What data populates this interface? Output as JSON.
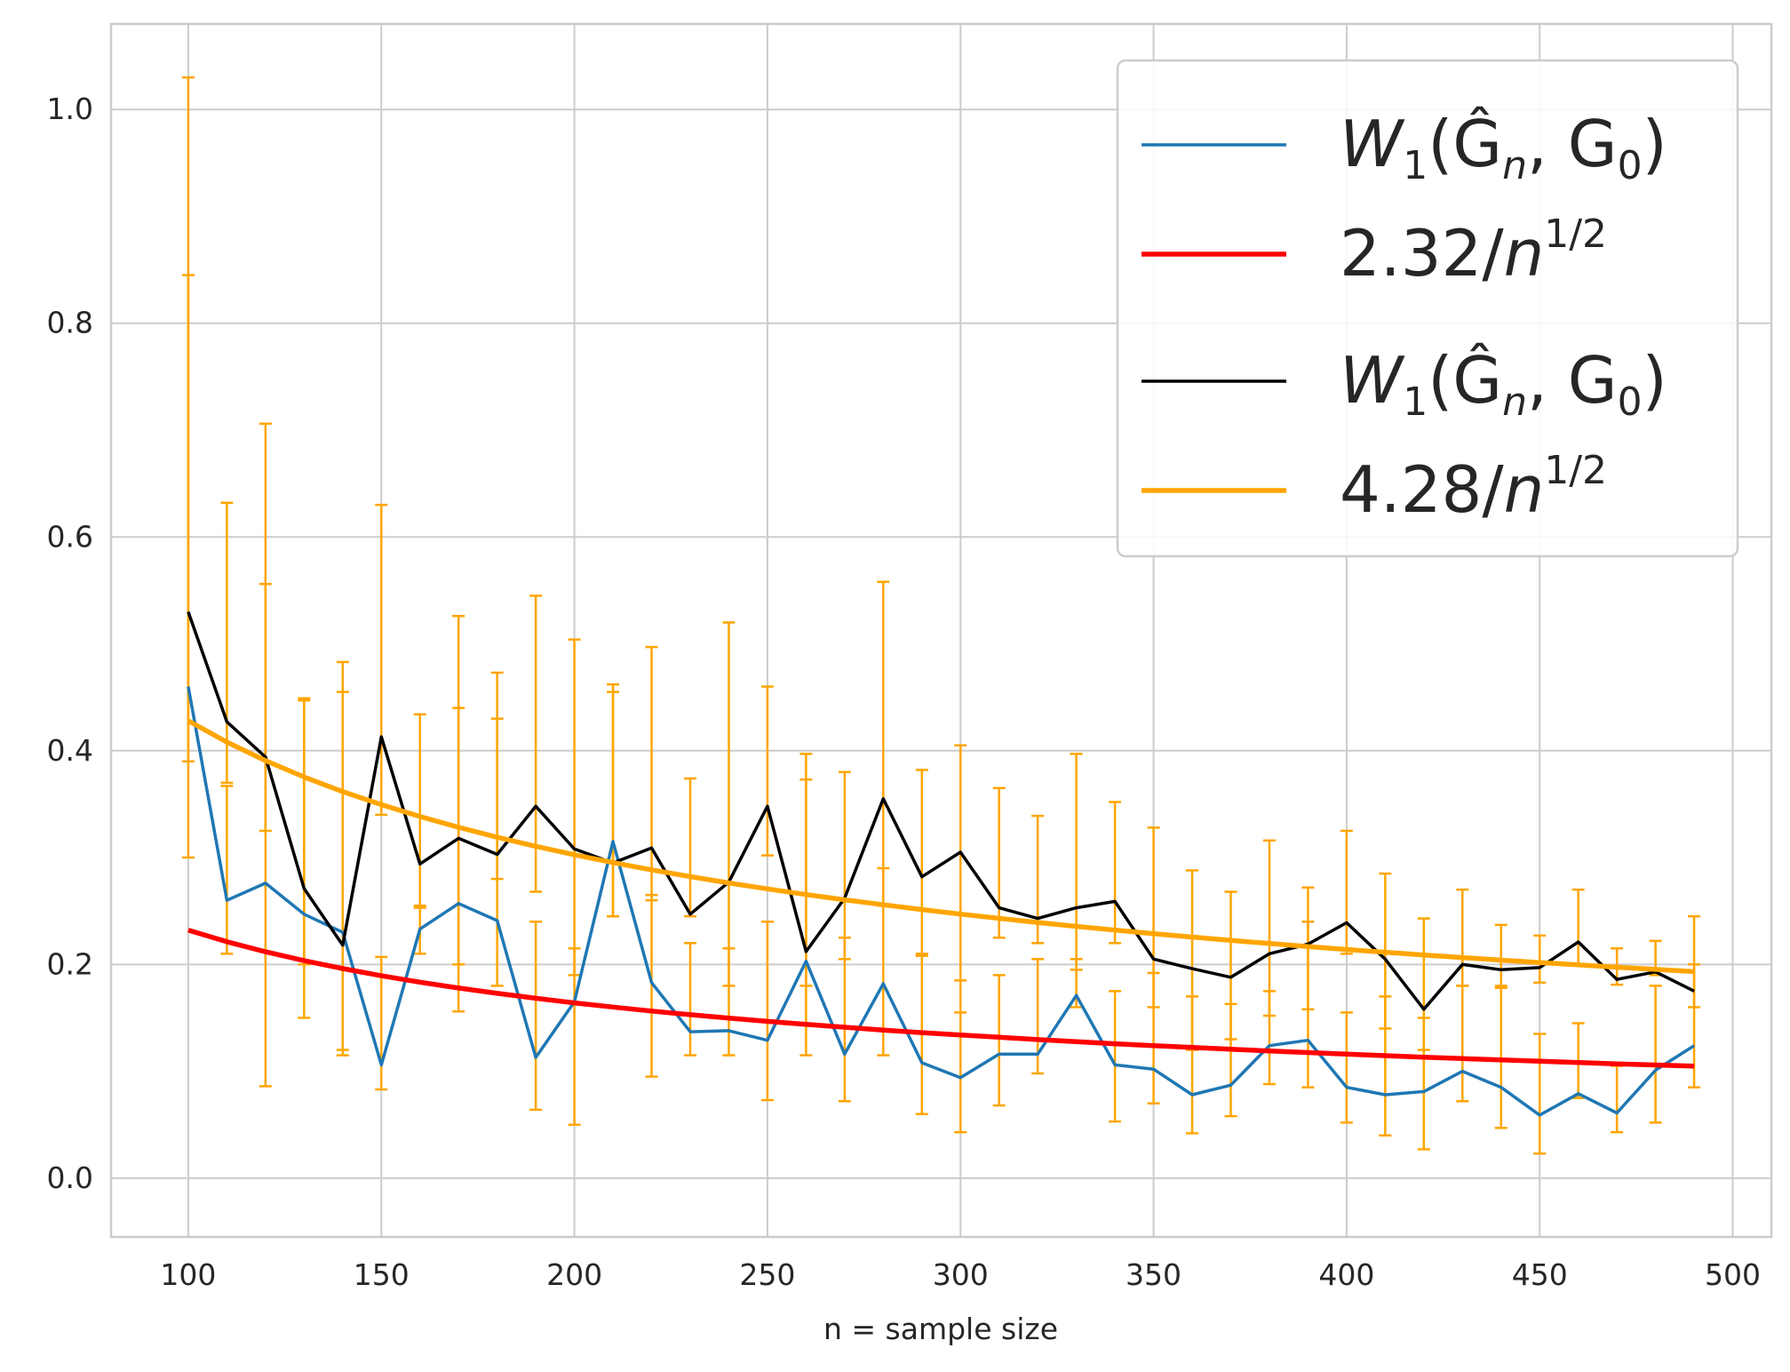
{
  "chart_data": {
    "type": "line",
    "title": "",
    "xlabel": "n = sample size",
    "ylabel": "",
    "xlim": [
      80,
      510
    ],
    "ylim": [
      -0.055,
      1.08
    ],
    "xticks": [
      100,
      150,
      200,
      250,
      300,
      350,
      400,
      450,
      500
    ],
    "yticks": [
      0.0,
      0.2,
      0.4,
      0.6,
      0.8,
      1.0
    ],
    "xtick_labels": [
      "100",
      "150",
      "200",
      "250",
      "300",
      "350",
      "400",
      "450",
      "500"
    ],
    "ytick_labels": [
      "0.0",
      "0.2",
      "0.4",
      "0.6",
      "0.8",
      "1.0"
    ],
    "grid": true,
    "legend_position": "top-right",
    "x": [
      100,
      110,
      120,
      130,
      140,
      150,
      160,
      170,
      180,
      190,
      200,
      210,
      220,
      230,
      240,
      250,
      260,
      270,
      280,
      290,
      300,
      310,
      320,
      330,
      340,
      350,
      360,
      370,
      380,
      390,
      400,
      410,
      420,
      430,
      440,
      450,
      460,
      470,
      480,
      490
    ],
    "series": [
      {
        "name": "W1(Ĝn, G0)",
        "legend_parts": [
          "W",
          "1",
          "(Ĝ",
          "n",
          ", G",
          "0",
          ")"
        ],
        "color": "#1f77b4",
        "values": [
          0.46,
          0.26,
          0.276,
          0.247,
          0.23,
          0.106,
          0.233,
          0.257,
          0.241,
          0.113,
          0.165,
          0.315,
          0.183,
          0.137,
          0.138,
          0.129,
          0.203,
          0.116,
          0.182,
          0.108,
          0.094,
          0.116,
          0.116,
          0.171,
          0.106,
          0.102,
          0.078,
          0.087,
          0.124,
          0.129,
          0.085,
          0.078,
          0.081,
          0.1,
          0.085,
          0.059,
          0.079,
          0.061,
          0.101,
          0.124
        ],
        "error_low": [
          0.3,
          0.21,
          0.086,
          0.15,
          0.115,
          0.083,
          0.21,
          0.156,
          0.18,
          0.064,
          0.05,
          0.245,
          0.095,
          0.115,
          0.115,
          0.073,
          0.115,
          0.072,
          0.115,
          0.06,
          0.043,
          0.068,
          0.098,
          0.16,
          0.053,
          0.07,
          0.042,
          0.058,
          0.088,
          0.085,
          0.052,
          0.04,
          0.027,
          0.072,
          0.047,
          0.023,
          0.075,
          0.043,
          0.052,
          0.085
        ],
        "error_high": [
          0.845,
          0.367,
          0.556,
          0.447,
          0.455,
          0.207,
          0.255,
          0.44,
          0.43,
          0.24,
          0.215,
          0.455,
          0.265,
          0.22,
          0.215,
          0.24,
          0.373,
          0.225,
          0.29,
          0.21,
          0.185,
          0.19,
          0.205,
          0.205,
          0.175,
          0.192,
          0.17,
          0.163,
          0.175,
          0.24,
          0.155,
          0.17,
          0.15,
          0.18,
          0.178,
          0.135,
          0.145,
          0.105,
          0.18,
          0.2
        ]
      },
      {
        "name": "2.32/n^1/2",
        "legend_parts": [
          "2.32/",
          "n",
          "1/2"
        ],
        "color": "#ff0000",
        "coefficient": 2.32,
        "values": [
          0.232,
          0.2212,
          0.2118,
          0.2035,
          0.1961,
          0.1894,
          0.1834,
          0.1779,
          0.1729,
          0.1683,
          0.164,
          0.1601,
          0.1564,
          0.153,
          0.1498,
          0.1467,
          0.1439,
          0.1412,
          0.1386,
          0.1362,
          0.1339,
          0.1318,
          0.1297,
          0.1277,
          0.1258,
          0.124,
          0.1223,
          0.1206,
          0.119,
          0.1175,
          0.116,
          0.1146,
          0.1132,
          0.1119,
          0.1106,
          0.1094,
          0.1082,
          0.107,
          0.1059,
          0.1048
        ]
      },
      {
        "name": "W1(Ĝn, G0)",
        "legend_parts": [
          "W",
          "1",
          "(Ĝ",
          "n",
          ", G",
          "0",
          ")"
        ],
        "color": "#000000",
        "values": [
          0.53,
          0.427,
          0.394,
          0.271,
          0.218,
          0.413,
          0.294,
          0.318,
          0.303,
          0.348,
          0.308,
          0.295,
          0.309,
          0.247,
          0.277,
          0.348,
          0.212,
          0.262,
          0.355,
          0.282,
          0.305,
          0.253,
          0.243,
          0.253,
          0.259,
          0.205,
          0.196,
          0.188,
          0.21,
          0.219,
          0.239,
          0.205,
          0.158,
          0.2,
          0.195,
          0.197,
          0.221,
          0.186,
          0.193,
          0.175
        ],
        "error_low": [
          0.39,
          0.37,
          0.325,
          0.2,
          0.12,
          0.34,
          0.253,
          0.2,
          0.28,
          0.268,
          0.19,
          0.245,
          0.26,
          0.245,
          0.18,
          0.302,
          0.18,
          0.205,
          0.255,
          0.208,
          0.155,
          0.225,
          0.22,
          0.195,
          0.22,
          0.16,
          0.12,
          0.13,
          0.152,
          0.158,
          0.21,
          0.14,
          0.12,
          0.18,
          0.18,
          0.183,
          0.2,
          0.181,
          0.19,
          0.16
        ],
        "error_high": [
          1.03,
          0.632,
          0.706,
          0.449,
          0.483,
          0.63,
          0.434,
          0.526,
          0.473,
          0.545,
          0.504,
          0.462,
          0.497,
          0.374,
          0.52,
          0.46,
          0.397,
          0.38,
          0.558,
          0.382,
          0.405,
          0.365,
          0.339,
          0.397,
          0.352,
          0.328,
          0.288,
          0.268,
          0.316,
          0.272,
          0.325,
          0.285,
          0.243,
          0.27,
          0.237,
          0.227,
          0.27,
          0.215,
          0.222,
          0.245
        ]
      },
      {
        "name": "4.28/n^1/2",
        "legend_parts": [
          "4.28/",
          "n",
          "1/2"
        ],
        "color": "#ffa500",
        "coefficient": 4.28,
        "values": [
          0.428,
          0.4081,
          0.3907,
          0.3754,
          0.3617,
          0.3495,
          0.3384,
          0.3283,
          0.319,
          0.3105,
          0.3026,
          0.2953,
          0.2885,
          0.2822,
          0.2763,
          0.2707,
          0.2654,
          0.2605,
          0.2558,
          0.2513,
          0.2471,
          0.2431,
          0.2393,
          0.2356,
          0.2321,
          0.2288,
          0.2256,
          0.2225,
          0.2196,
          0.2167,
          0.214,
          0.2114,
          0.2088,
          0.2064,
          0.204,
          0.2018,
          0.1996,
          0.1974,
          0.1954,
          0.1933
        ]
      }
    ],
    "errorbar_color": "#ffa500"
  }
}
